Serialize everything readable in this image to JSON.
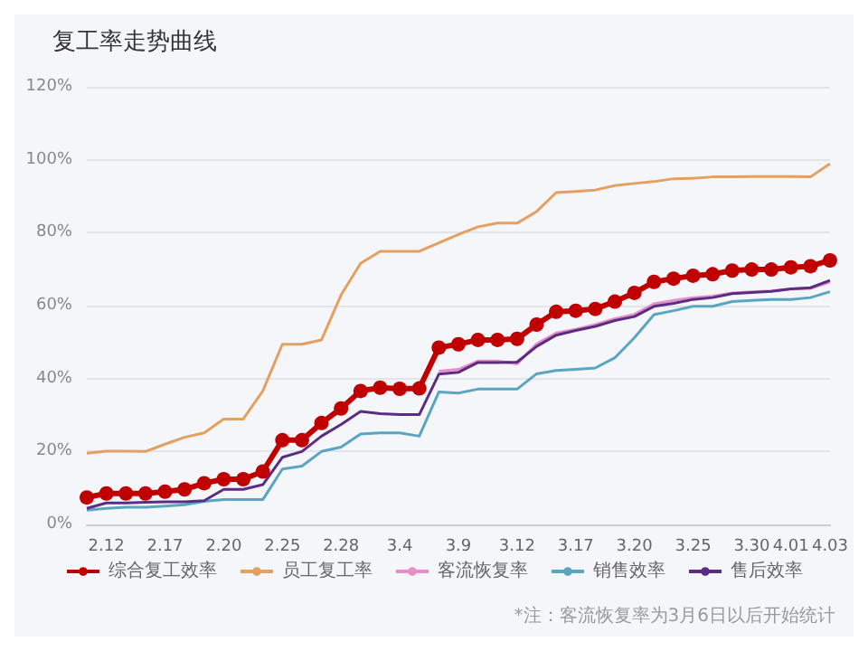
{
  "chart_data": {
    "type": "line",
    "title": "复工率走势曲线",
    "annotations": [
      "*注：客流恢复率为3月6日以后开始统计"
    ],
    "categories": [
      null,
      "2.12",
      null,
      null,
      "2.17",
      null,
      null,
      "2.20",
      null,
      null,
      "2.25",
      null,
      null,
      "2.28",
      null,
      null,
      "3.4",
      null,
      null,
      "3.9",
      null,
      null,
      "3.12",
      null,
      null,
      "3.17",
      null,
      null,
      "3.20",
      null,
      null,
      "3.25",
      null,
      null,
      "3.30",
      null,
      "4.01",
      null,
      "4.03"
    ],
    "ylim": [
      0,
      120
    ],
    "yticks": [
      {
        "value": 0,
        "label": "0%"
      },
      {
        "value": 20,
        "label": "20%"
      },
      {
        "value": 40,
        "label": "40%"
      },
      {
        "value": 60,
        "label": "60%"
      },
      {
        "value": 80,
        "label": "80%"
      },
      {
        "value": 100,
        "label": "100%"
      },
      {
        "value": 120,
        "label": "120%"
      }
    ],
    "grid": "y",
    "legend": "bottom",
    "series": [
      {
        "name": "综合复工效率",
        "color": "#c00000",
        "marker": "circle",
        "values": [
          7.4,
          8.5,
          8.5,
          8.5,
          9,
          9.6,
          11.3,
          12.4,
          12.4,
          14.5,
          23.1,
          23.1,
          27.8,
          31.8,
          36.6,
          37.5,
          37.2,
          37.3,
          48.5,
          49.4,
          50.6,
          50.6,
          50.9,
          54.8,
          58.3,
          58.6,
          59.1,
          61.1,
          63.5,
          66.5,
          67.4,
          68.2,
          68.6,
          69.6,
          69.9,
          69.9,
          70.5,
          70.8,
          72.4
        ]
      },
      {
        "name": "员工复工率",
        "color": "#e3a060",
        "marker": "none",
        "values": [
          19.5,
          20.1,
          20.1,
          20,
          22,
          23.9,
          25.1,
          28.9,
          28.9,
          36.6,
          49.4,
          49.4,
          50.6,
          62.9,
          71.6,
          74.9,
          74.9,
          74.9,
          77.2,
          79.5,
          81.6,
          82.6,
          82.6,
          85.8,
          91,
          91.3,
          91.7,
          92.9,
          93.5,
          94,
          94.8,
          94.9,
          95.3,
          95.3,
          95.4,
          95.4,
          95.4,
          95.3,
          98.9
        ]
      },
      {
        "name": "客流恢复率",
        "color": "#e58fc8",
        "marker": "none",
        "values": [
          null,
          null,
          null,
          null,
          null,
          null,
          null,
          null,
          null,
          null,
          null,
          null,
          null,
          null,
          null,
          null,
          null,
          null,
          42,
          42.5,
          44.8,
          44.8,
          44,
          49.5,
          52.5,
          53.5,
          54.8,
          56.4,
          57.6,
          60.5,
          61.4,
          62.2,
          62.6,
          63.5,
          63.8,
          64,
          64.5,
          64.7,
          66.5
        ]
      },
      {
        "name": "销售效率",
        "color": "#5aa5c0",
        "marker": "none",
        "values": [
          3.9,
          4.4,
          4.7,
          4.7,
          5,
          5.4,
          6.3,
          6.8,
          6.8,
          6.8,
          15.2,
          16,
          20,
          21.2,
          24.8,
          25.1,
          25.1,
          24.2,
          36.3,
          36,
          37.1,
          37.1,
          37.1,
          41.3,
          42.2,
          42.5,
          42.9,
          45.7,
          51.2,
          57.5,
          58.6,
          59.8,
          59.8,
          61.1,
          61.4,
          61.7,
          61.7,
          62.2,
          63.8
        ]
      },
      {
        "name": "售后效率",
        "color": "#5b2d82",
        "marker": "none",
        "values": [
          4.4,
          5.9,
          5.9,
          6.1,
          6.2,
          6.2,
          6.5,
          9.6,
          9.6,
          10.9,
          18.4,
          20,
          24.2,
          27.4,
          31,
          30.4,
          30.1,
          30.1,
          41.2,
          41.7,
          44.4,
          44.4,
          44.5,
          48.8,
          51.9,
          53.2,
          54.3,
          55.9,
          57,
          59.8,
          60.6,
          61.7,
          62.2,
          63.3,
          63.6,
          63.9,
          64.6,
          64.9,
          66.9
        ]
      }
    ]
  }
}
